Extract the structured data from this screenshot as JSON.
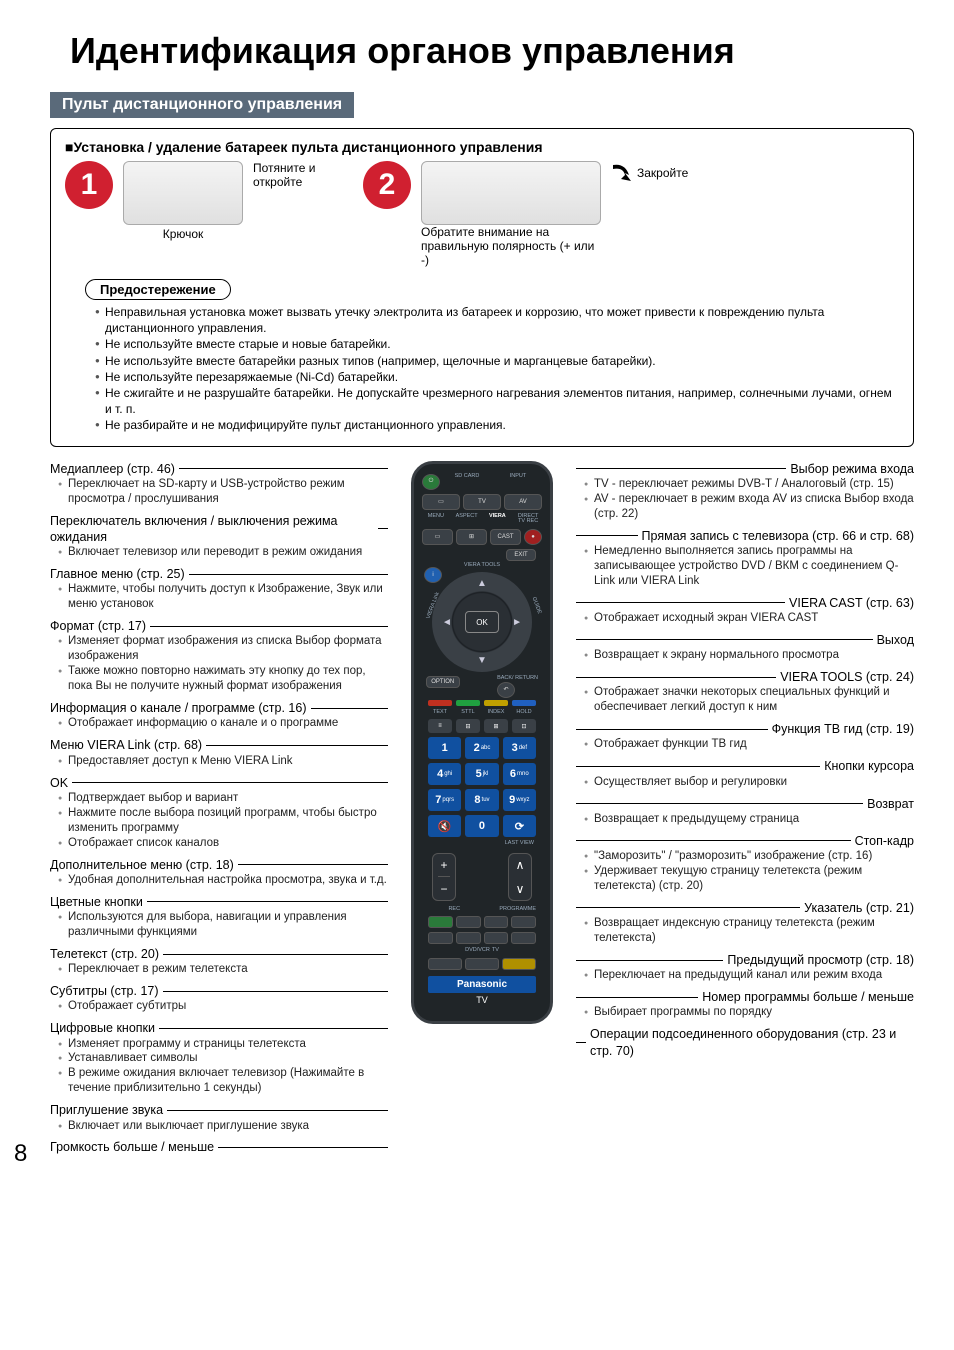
{
  "page": {
    "title": "Идентификация органов управления",
    "section_bar": "Пульт дистанционного управления",
    "page_number": "8"
  },
  "install": {
    "heading": "■Установка / удаление батареек пульта дистанционного управления",
    "step1_num": "1",
    "step1_text": "Потяните и откройте",
    "hook_label": "Крючок",
    "step2_num": "2",
    "polarity_text": "Обратите внимание на правильную полярность (+ или -)",
    "close_label": "Закройте"
  },
  "caution": {
    "heading": "Предостережение",
    "items": [
      "Неправильная установка может вызвать утечку электролита из батареек и коррозию, что может привести к повреждению пульта дистанционного управления.",
      "Не используйте вместе старые и новые батарейки.",
      "Не используйте вместе батарейки разных типов (например, щелочные и марганцевые батарейки).",
      "Не используйте перезаряжаемые (Ni-Cd) батарейки.",
      "Не сжигайте и не разрушайте батарейки.\nНе допускайте чрезмерного нагревания элементов питания, например, солнечными лучами, огнем и т. п.",
      "Не разбирайте и не модифицируйте пульт дистанционного управления."
    ]
  },
  "left": [
    {
      "t": "Медиаплеер (стр. 46)",
      "b": [
        "Переключает на SD-карту и USB-устройство режим просмотра / прослушивания"
      ]
    },
    {
      "t": "Переключатель включения / выключения режима ожидания",
      "b": [
        "Включает телевизор или переводит в режим ожидания"
      ]
    },
    {
      "t": "Главное меню (стр. 25)",
      "b": [
        "Нажмите, чтобы получить доступ к Изображение, Звук или меню установок"
      ]
    },
    {
      "t": "Формат (стр. 17)",
      "b": [
        "Изменяет формат изображения из списка Выбор формата изображения",
        "Также можно повторно нажимать эту кнопку до тех пор, пока Вы не получите нужный формат изображения"
      ]
    },
    {
      "t": "Информация о канале / программе (стр. 16)",
      "b": [
        "Отображает информацию о канале и о программе"
      ]
    },
    {
      "t": "Меню VIERA Link (стр. 68)",
      "b": [
        "Предоставляет доступ к Меню VIERA Link"
      ]
    },
    {
      "t": "OK",
      "b": [
        "Подтверждает выбор и вариант",
        "Нажмите после выбора позиций программ, чтобы быстро изменить программу",
        "Отображает список каналов"
      ]
    },
    {
      "t": "Дополнительное меню (стр. 18)",
      "b": [
        "Удобная дополнительная настройка просмотра, звука и т.д."
      ]
    },
    {
      "t": "Цветные кнопки",
      "b": [
        "Используются для выбора, навигации и управления различными функциями"
      ]
    },
    {
      "t": "Телетекст (стр. 20)",
      "b": [
        "Переключает в режим телетекста"
      ]
    },
    {
      "t": "Субтитры (стр. 17)",
      "b": [
        "Отображает субтитры"
      ]
    },
    {
      "t": "Цифровые кнопки",
      "b": [
        "Изменяет программу и страницы телетекста",
        "Устанавливает символы",
        "В режиме ожидания включает телевизор (Нажимайте в течение приблизительно 1 секунды)"
      ]
    },
    {
      "t": "Приглушение звука",
      "b": [
        "Включает или выключает приглушение звука"
      ]
    },
    {
      "t": "Громкость больше / меньше",
      "b": []
    }
  ],
  "right": [
    {
      "t": "Выбор режима входа",
      "b": [
        "TV - переключает режимы DVB-T / Аналоговый (стр. 15)",
        "AV - переключает в режим входа AV из списка Выбор входа (стр. 22)"
      ]
    },
    {
      "t": "Прямая запись с телевизора (стр. 66 и стр. 68)",
      "b": [
        "Немедленно выполняется запись программы на записывающее устройство DVD / ВКМ с соединением Q-Link или VIERA Link"
      ]
    },
    {
      "t": "VIERA CAST (стр. 63)",
      "b": [
        "Отображает исходный экран VIERA CAST"
      ]
    },
    {
      "t": "Выход",
      "b": [
        "Возвращает к экрану нормального просмотра"
      ]
    },
    {
      "t": "VIERA TOOLS (стр. 24)",
      "b": [
        "Отображает значки некоторых специальных функций и обеспечивает легкий доступ к ним"
      ]
    },
    {
      "t": "Функция ТВ гид (стр. 19)",
      "b": [
        "Отображает функции ТВ гид"
      ]
    },
    {
      "t": "Кнопки курсора",
      "b": [
        "Осуществляет выбор и регулировки"
      ]
    },
    {
      "t": "Возврат",
      "b": [
        "Возвращает к предыдущему страница"
      ]
    },
    {
      "t": "Стоп-кадр",
      "b": [
        "\"Заморозить\" / \"разморозить\" изображение (стр. 16)",
        "Удерживает текущую страницу телетекста (режим телетекста) (стр. 20)"
      ]
    },
    {
      "t": "Указатель (стр. 21)",
      "b": [
        "Возвращает индексную страницу телетекста (режим телетекста)"
      ]
    },
    {
      "t": "Предыдущий просмотр (стр. 18)",
      "b": [
        "Переключает на предыдущий канал или режим входа"
      ]
    },
    {
      "t": "Номер программы больше / меньше",
      "b": [
        "Выбирает программы по порядку"
      ]
    },
    {
      "t": "Операции подсоединенного оборудования (стр. 23 и стр. 70)",
      "b": []
    }
  ],
  "remote": {
    "top_labels": [
      "SD CARD",
      "INPUT",
      "TV",
      "AV"
    ],
    "menu_row": [
      "MENU",
      "ASPECT",
      "VIERA",
      "DIRECT TV REC"
    ],
    "cast_row": [
      "",
      "",
      "CAST",
      ""
    ],
    "exit": "EXIT",
    "info": "i",
    "tools": "VIERA TOOLS",
    "link": "VIERA Link",
    "guide": "GUIDE",
    "ok": "OK",
    "option": "OPTION",
    "return": "BACK/ RETURN",
    "txt": [
      "TEXT",
      "STTL",
      "INDEX",
      "HOLD"
    ],
    "colors": [
      "#c03020",
      "#20a040",
      "#c0a000",
      "#2060c0"
    ],
    "nums": [
      "1",
      "2abc",
      "3def",
      "4ghi",
      "5jkl",
      "6mno",
      "7pqrs",
      "8tuv",
      "9wxyz",
      "🔇",
      "0",
      "⟳"
    ],
    "lastview": "LAST VIEW",
    "vol": [
      "+",
      "−"
    ],
    "prog": [
      "∧",
      "∨"
    ],
    "rec": "REC",
    "programme": "PROGRAMME",
    "dvd": "DVD/VCR",
    "tv": "TV",
    "brand": "Panasonic",
    "tv_label": "TV"
  }
}
